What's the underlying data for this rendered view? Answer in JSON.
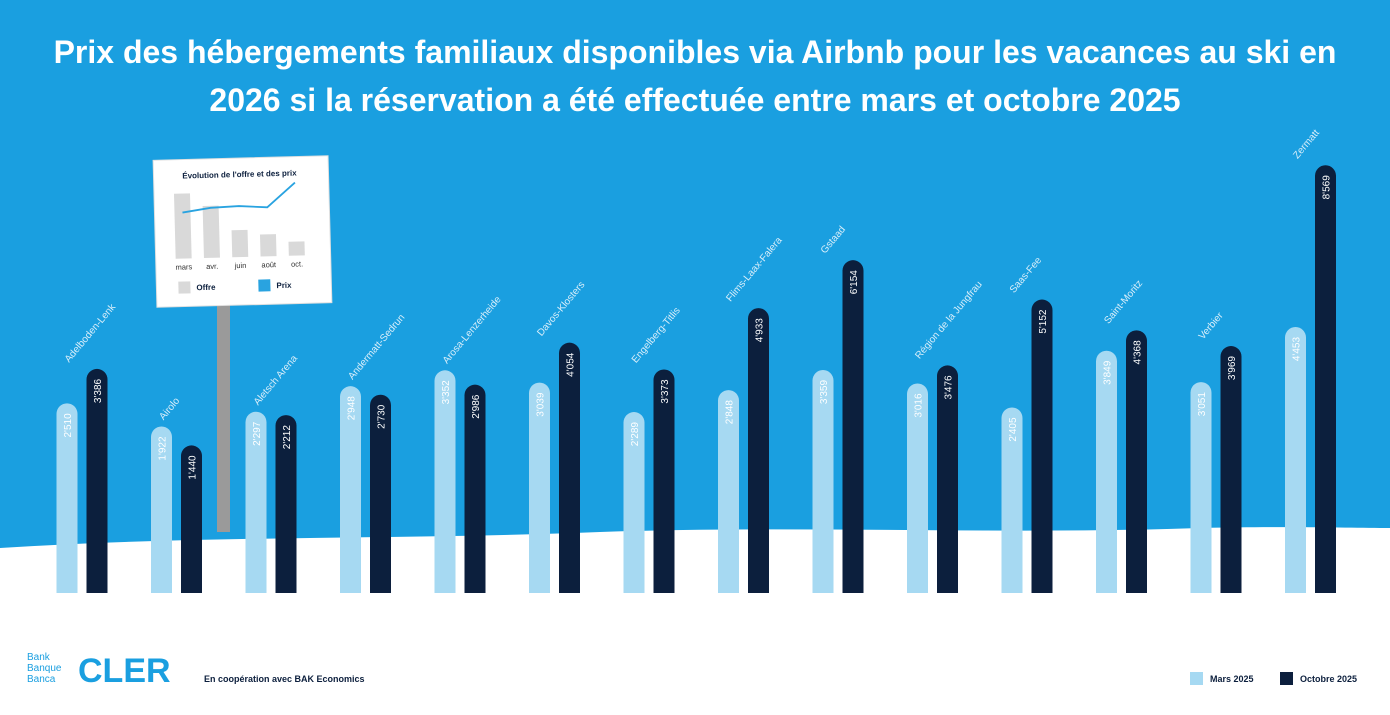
{
  "chart_data": [
    {
      "type": "bar",
      "title": "Prix des hébergements familiaux disponibles via Airbnb pour les vacances au ski en 2026 si la réservation a été effectuée entre mars et octobre 2025",
      "categories": [
        "Adelboden-Lenk",
        "Airolo",
        "Aletsch Arena",
        "Andermatt-Sedrun",
        "Arosa-Lenzerheide",
        "Davos-Klosters",
        "Engelberg-Titlis",
        "Flims-Laax-Falera",
        "Gstaad",
        "Région de la Jungfrau",
        "Saas-Fee",
        "Saint-Moritz",
        "Verbier",
        "Zermatt"
      ],
      "series": [
        {
          "name": "Mars 2025",
          "color": "#a6d9f2",
          "values": [
            2510,
            1922,
            2297,
            2948,
            3352,
            3039,
            2289,
            2848,
            3359,
            3016,
            2405,
            3849,
            3051,
            4453
          ],
          "value_labels": [
            "2'510",
            "1'922",
            "2'297",
            "2'948",
            "3'352",
            "3'039",
            "2'289",
            "2'848",
            "3'359",
            "3'016",
            "2'405",
            "3'849",
            "3'051",
            "4'453"
          ]
        },
        {
          "name": "Octobre 2025",
          "color": "#0c1f3d",
          "values": [
            3386,
            1440,
            2212,
            2730,
            2986,
            4054,
            3373,
            4933,
            6154,
            3476,
            5152,
            4368,
            3969,
            8569
          ],
          "value_labels": [
            "3'386",
            "1'440",
            "2'212",
            "2'730",
            "2'986",
            "4'054",
            "3'373",
            "4'933",
            "6'154",
            "3'476",
            "5'152",
            "4'368",
            "3'969",
            "8'569"
          ]
        }
      ]
    },
    {
      "type": "bar-line",
      "title": "Évolution de l'offre et des prix",
      "categories": [
        "mars",
        "avr.",
        "juin",
        "août",
        "oct."
      ],
      "series": [
        {
          "name": "Offre",
          "type": "bar",
          "color": "#d9d9d9",
          "values": [
            65,
            52,
            27,
            22,
            14
          ]
        },
        {
          "name": "Prix",
          "type": "line",
          "color": "#29a3e0",
          "values": [
            46,
            50,
            51,
            49,
            73
          ]
        }
      ]
    }
  ],
  "footer": {
    "bank": [
      "Bank",
      "Banque",
      "Banca"
    ],
    "brand": "CLER",
    "note": "En coopération avec BAK Economics"
  }
}
